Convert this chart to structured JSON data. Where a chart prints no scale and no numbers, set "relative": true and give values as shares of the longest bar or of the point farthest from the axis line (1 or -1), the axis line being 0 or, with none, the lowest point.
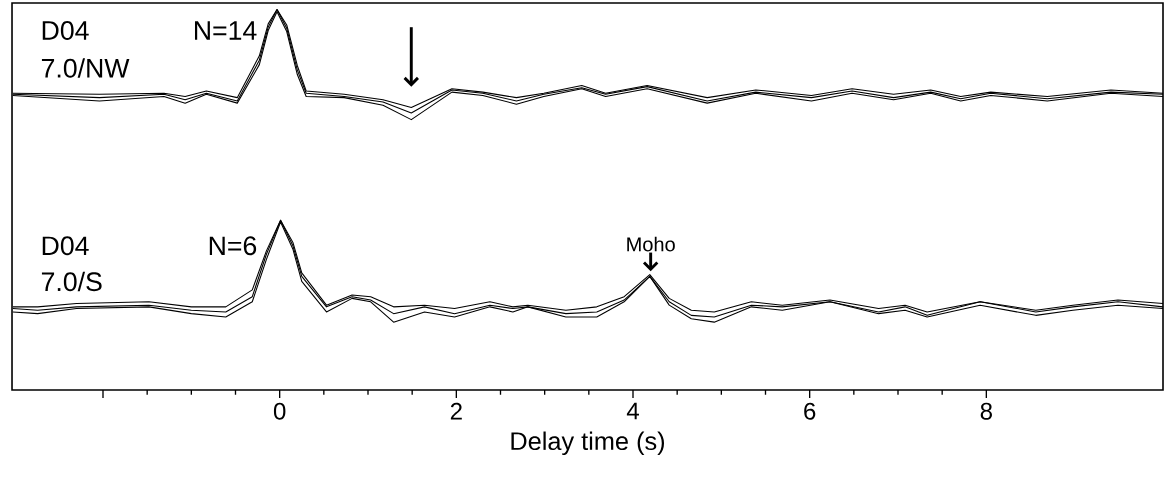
{
  "chart_data": [
    {
      "type": "line",
      "xlim": [
        -3.03,
        10
      ],
      "relative": true,
      "annotations": [
        "D04",
        "7.0/NW",
        "N=14"
      ],
      "x": [
        -3.02,
        -2.04,
        -1.31,
        -1.07,
        -0.83,
        -0.48,
        -0.23,
        -0.13,
        -0.03,
        0.08,
        0.2,
        0.3,
        0.73,
        1.17,
        1.49,
        1.95,
        2.3,
        2.68,
        2.99,
        3.42,
        3.69,
        4.16,
        4.84,
        5.39,
        6.02,
        6.48,
        6.95,
        7.37,
        7.71,
        8.05,
        8.69,
        9.41,
        10
      ],
      "series": [
        {
          "color": "#000000",
          "values": [
            0.23,
            0.2,
            0.23,
            0.18,
            0.24,
            0.17,
            0.54,
            0.84,
            1,
            0.83,
            0.45,
            0.24,
            0.21,
            0.16,
            0.06,
            0.27,
            0.24,
            0.17,
            0.23,
            0.29,
            0.23,
            0.3,
            0.17,
            0.25,
            0.2,
            0.26,
            0.2,
            0.25,
            0.19,
            0.24,
            0.19,
            0.25,
            0.23
          ]
        },
        {
          "color": "#000000",
          "values": [
            0.22,
            0.17,
            0.21,
            0.15,
            0.23,
            0.15,
            0.5,
            0.81,
            0.98,
            0.8,
            0.41,
            0.21,
            0.2,
            0.13,
            0,
            0.25,
            0.22,
            0.14,
            0.21,
            0.28,
            0.21,
            0.28,
            0.15,
            0.24,
            0.17,
            0.24,
            0.18,
            0.24,
            0.17,
            0.22,
            0.17,
            0.24,
            0.21
          ]
        },
        {
          "color": "#000000",
          "values": [
            0.24,
            0.23,
            0.24,
            0.21,
            0.26,
            0.2,
            0.58,
            0.87,
            1,
            0.86,
            0.49,
            0.26,
            0.23,
            0.18,
            0.11,
            0.28,
            0.25,
            0.2,
            0.24,
            0.31,
            0.24,
            0.31,
            0.2,
            0.27,
            0.22,
            0.28,
            0.23,
            0.27,
            0.21,
            0.25,
            0.21,
            0.27,
            0.24
          ]
        }
      ]
    },
    {
      "type": "line",
      "xlim": [
        -3.03,
        10
      ],
      "relative": true,
      "xlabel": "Delay time (s)",
      "xticks": [
        {
          "value": -2,
          "label": null
        },
        0,
        2,
        4,
        6,
        8
      ],
      "annotations": [
        "D04",
        "7.0/S",
        "N=6",
        {
          "text": "Moho",
          "x": 4.2,
          "y": 0.67
        }
      ],
      "x": [
        -3.02,
        -2.74,
        -2.3,
        -1.48,
        -1.0,
        -0.61,
        -0.31,
        -0.15,
        0.01,
        0.15,
        0.25,
        0.53,
        0.82,
        1.03,
        1.29,
        1.64,
        1.98,
        2.38,
        2.64,
        2.81,
        3.24,
        3.59,
        3.9,
        4.19,
        4.41,
        4.66,
        4.92,
        5.34,
        5.69,
        6.23,
        6.78,
        7.08,
        7.33,
        7.93,
        8.56,
        8.98,
        9.49,
        10
      ],
      "series": [
        {
          "color": "#000000",
          "values": [
            0.48,
            0.47,
            0.49,
            0.5,
            0.47,
            0.46,
            0.55,
            0.8,
            1,
            0.85,
            0.67,
            0.49,
            0.55,
            0.53,
            0.45,
            0.49,
            0.45,
            0.5,
            0.48,
            0.49,
            0.45,
            0.46,
            0.53,
            0.67,
            0.52,
            0.44,
            0.43,
            0.5,
            0.49,
            0.52,
            0.46,
            0.49,
            0.44,
            0.52,
            0.46,
            0.49,
            0.52,
            0.49
          ]
        },
        {
          "color": "#000000",
          "values": [
            0.46,
            0.45,
            0.48,
            0.49,
            0.45,
            0.43,
            0.52,
            0.77,
            0.99,
            0.83,
            0.64,
            0.46,
            0.54,
            0.52,
            0.4,
            0.46,
            0.43,
            0.49,
            0.46,
            0.49,
            0.43,
            0.43,
            0.52,
            0.67,
            0.5,
            0.42,
            0.4,
            0.49,
            0.47,
            0.52,
            0.45,
            0.47,
            0.43,
            0.5,
            0.44,
            0.47,
            0.5,
            0.48
          ]
        },
        {
          "color": "#000000",
          "values": [
            0.49,
            0.49,
            0.51,
            0.52,
            0.49,
            0.49,
            0.59,
            0.82,
            1,
            0.87,
            0.69,
            0.5,
            0.56,
            0.55,
            0.49,
            0.5,
            0.48,
            0.52,
            0.49,
            0.5,
            0.47,
            0.49,
            0.55,
            0.68,
            0.54,
            0.47,
            0.46,
            0.52,
            0.5,
            0.53,
            0.48,
            0.5,
            0.46,
            0.52,
            0.47,
            0.5,
            0.53,
            0.51
          ]
        }
      ]
    }
  ]
}
